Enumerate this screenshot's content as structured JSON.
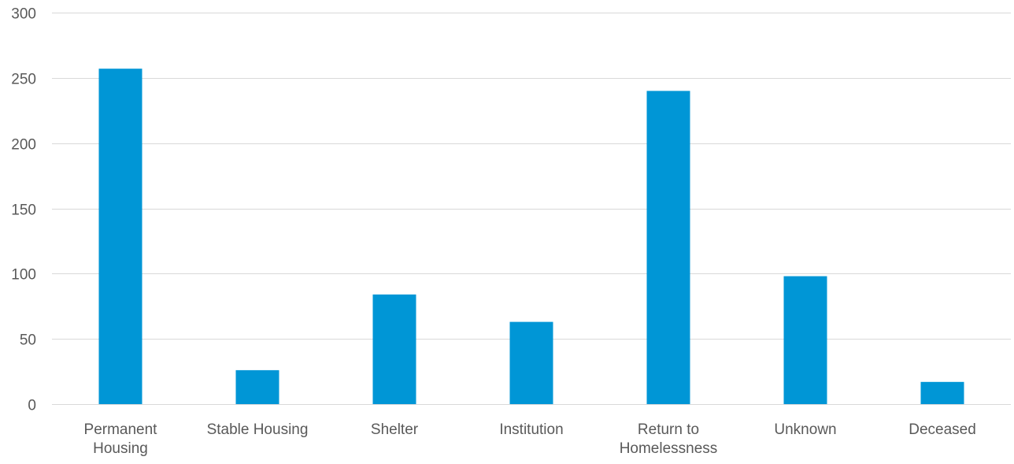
{
  "chart_data": {
    "type": "bar",
    "title": "",
    "xlabel": "",
    "ylabel": "",
    "categories": [
      [
        "Permanent",
        "Housing"
      ],
      [
        "Stable Housing"
      ],
      [
        "Shelter"
      ],
      [
        "Institution"
      ],
      [
        "Return to",
        "Homelessness"
      ],
      [
        "Unknown"
      ],
      [
        "Deceased"
      ]
    ],
    "values": [
      257,
      26,
      84,
      63,
      240,
      98,
      17
    ],
    "ylim": [
      0,
      300
    ],
    "yticks": [
      0,
      50,
      100,
      150,
      200,
      250,
      300
    ],
    "grid": true,
    "legend": "none",
    "bar_color": "#0096d6",
    "grid_color": "#d9d9d9",
    "text_color": "#595959"
  }
}
